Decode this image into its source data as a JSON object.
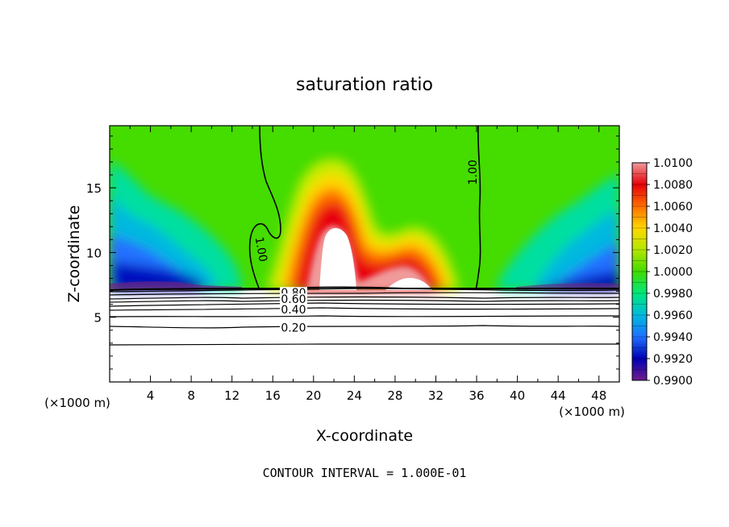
{
  "chart_data": {
    "type": "heatmap",
    "title": "saturation ratio",
    "xlabel": "X-coordinate",
    "ylabel": "Z-coordinate",
    "x_unit_left": "(×1000 m)",
    "x_unit_right": "(×1000 m)",
    "footer": "CONTOUR INTERVAL = 1.000E-01",
    "xlim": [
      0,
      50
    ],
    "ylim": [
      0,
      19.8
    ],
    "x_ticks": [
      4,
      8,
      12,
      16,
      20,
      24,
      28,
      32,
      36,
      40,
      44,
      48
    ],
    "y_ticks": [
      5,
      10,
      15
    ],
    "colorbar": {
      "min": 0.99,
      "max": 1.01,
      "labels": [
        "1.0100",
        "1.0080",
        "1.0060",
        "1.0040",
        "1.0020",
        "1.0000",
        "0.9980",
        "0.9960",
        "0.9940",
        "0.9920",
        "0.9900"
      ],
      "colors": [
        "#f09a9a",
        "#e8000a",
        "#ff6d00",
        "#ffd700",
        "#b4e600",
        "#41dc00",
        "#00e87a",
        "#00bbdd",
        "#1e6fff",
        "#0000b4",
        "#6e1e8c"
      ]
    },
    "contour_labels": [
      {
        "text": "1.00",
        "x": 14.5,
        "z": 10.2
      },
      {
        "text": "1.00",
        "x": 36.0,
        "z": 16.2
      },
      {
        "text": "0.80",
        "x": 17.8,
        "z": 6.9
      },
      {
        "text": "0.60",
        "x": 17.8,
        "z": 6.4
      },
      {
        "text": "0.40",
        "x": 17.8,
        "z": 5.6
      },
      {
        "text": "0.20",
        "x": 17.8,
        "z": 4.2
      }
    ],
    "contour_levels_below": [
      0.2,
      0.3,
      0.4,
      0.5,
      0.6,
      0.7,
      0.8,
      0.9,
      1.0
    ],
    "saturated_region_base_z": 7.2
  }
}
